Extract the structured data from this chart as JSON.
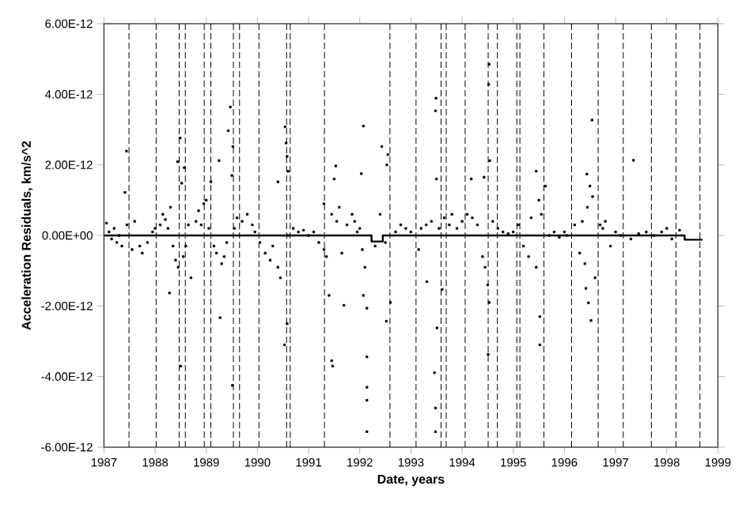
{
  "chart_data": {
    "type": "scatter",
    "xlabel": "Date, years",
    "ylabel": "Acceleration Residuals, km/s^2",
    "xlim": [
      1987,
      1999
    ],
    "xticks": [
      1987,
      1988,
      1989,
      1990,
      1991,
      1992,
      1993,
      1994,
      1995,
      1996,
      1997,
      1998,
      1999
    ],
    "ylim": [
      -6e-12,
      6e-12
    ],
    "yticks": [
      {
        "value": -6e-12,
        "label": "-6.00E-12"
      },
      {
        "value": -4e-12,
        "label": "-4.00E-12"
      },
      {
        "value": -2e-12,
        "label": "-2.00E-12"
      },
      {
        "value": 0,
        "label": "0.00E+00"
      },
      {
        "value": 2e-12,
        "label": "2.00E-12"
      },
      {
        "value": 4e-12,
        "label": "4.00E-12"
      },
      {
        "value": 6e-12,
        "label": "6.00E-12"
      }
    ],
    "grid": false,
    "series": [
      {
        "color": "#000000",
        "marker": "square",
        "x": [
          1987.05,
          1987.1,
          1987.15,
          1987.2,
          1987.25,
          1987.3,
          1987.35,
          1987.45,
          1987.55,
          1987.6,
          1987.7,
          1987.75,
          1987.85,
          1987.95,
          1988.0,
          1988.1,
          1988.15,
          1988.2,
          1988.25,
          1988.3,
          1988.35,
          1988.4,
          1988.45,
          1988.55,
          1988.6,
          1988.65,
          1988.7,
          1988.8,
          1988.85,
          1988.9,
          1988.95,
          1989.0,
          1989.05,
          1989.15,
          1989.2,
          1989.3,
          1989.35,
          1989.4,
          1989.55,
          1989.6,
          1989.7,
          1989.8,
          1989.9,
          1989.95,
          1990.05,
          1990.15,
          1990.25,
          1990.3,
          1990.4,
          1990.45,
          1990.6,
          1990.7,
          1990.8,
          1990.9,
          1991.0,
          1991.1,
          1991.2,
          1991.3,
          1991.35,
          1991.45,
          1991.55,
          1991.6,
          1991.65,
          1991.75,
          1991.85,
          1991.9,
          1991.95,
          1992.0,
          1992.05,
          1992.1,
          1992.3,
          1992.4,
          1992.5,
          1992.7,
          1992.8,
          1992.9,
          1993.0,
          1993.15,
          1993.2,
          1993.3,
          1993.4,
          1993.55,
          1993.65,
          1993.75,
          1993.8,
          1993.9,
          1994.0,
          1994.1,
          1994.2,
          1994.3,
          1994.4,
          1994.45,
          1994.6,
          1994.7,
          1994.8,
          1994.9,
          1995.0,
          1995.1,
          1995.2,
          1995.3,
          1995.35,
          1995.45,
          1995.5,
          1995.55,
          1995.7,
          1995.8,
          1995.9,
          1996.0,
          1996.05,
          1996.2,
          1996.3,
          1996.35,
          1996.4,
          1996.45,
          1996.55,
          1996.6,
          1996.7,
          1996.75,
          1996.8,
          1996.9,
          1997.0,
          1997.1,
          1997.3,
          1997.45,
          1997.6,
          1997.75,
          1997.9,
          1998.0,
          1998.1,
          1998.25,
          1987.44,
          1987.41,
          1988.49,
          1988.44,
          1988.57,
          1988.52,
          1989.47,
          1989.43,
          1989.52,
          1989.25,
          1989.5,
          1989.09,
          1990.54,
          1990.56,
          1990.58,
          1990.6,
          1990.4,
          1991.53,
          1991.5,
          1992.07,
          1992.03,
          1991.3,
          1994.53,
          1994.52,
          1993.49,
          1993.48,
          1996.54,
          1997.35,
          1994.54,
          1992.43,
          1992.55,
          1992.53,
          1995.45,
          1995.63,
          1996.44,
          1996.5,
          1993.5,
          1994.18,
          1994.43,
          1988.28,
          1988.5,
          1989.27,
          1989.51,
          1990.53,
          1990.58,
          1991.45,
          1991.47,
          1991.69,
          1992.14,
          1992.14,
          1992.14,
          1992.14,
          1992.14,
          1992.07,
          1991.4,
          1993.46,
          1993.48,
          1993.48,
          1993.51,
          1993.31,
          1994.51,
          1995.52,
          1995.52,
          1996.47,
          1996.52,
          1992.52,
          1992.6,
          1993.61,
          1994.53,
          1996.42,
          1994.5
        ],
        "values": [
          3.5e-13,
          1e-13,
          -1e-13,
          2e-13,
          -2e-13,
          0.0,
          -3e-13,
          3e-13,
          -4e-13,
          4e-13,
          -3e-13,
          -5e-13,
          -2e-13,
          1e-13,
          2e-13,
          3e-13,
          6e-13,
          4.5e-13,
          2e-13,
          8e-13,
          -3e-13,
          -7e-13,
          -9e-13,
          -6e-13,
          -3e-13,
          3e-13,
          -1.2e-12,
          4e-13,
          7e-13,
          3e-13,
          9e-13,
          1e-12,
          2e-13,
          -3e-13,
          -5e-13,
          -8e-13,
          -6e-13,
          -2e-13,
          2e-13,
          5e-13,
          4e-13,
          6e-13,
          3e-13,
          1e-13,
          -2e-13,
          -5e-13,
          -7e-13,
          -3e-13,
          -9e-13,
          -1.2e-12,
          0.0,
          2e-13,
          1e-13,
          1.5e-13,
          0.0,
          1e-13,
          -2e-13,
          -4e-13,
          -6e-13,
          6e-13,
          4e-13,
          8e-13,
          -5e-13,
          3e-13,
          6e-13,
          4e-13,
          1e-13,
          2e-13,
          -4e-13,
          -9e-13,
          -3e-13,
          6e-13,
          -2e-13,
          1e-13,
          3e-13,
          2e-13,
          1e-13,
          -4e-13,
          2e-13,
          3e-13,
          4e-13,
          2e-13,
          5e-13,
          3e-13,
          6e-13,
          2e-13,
          4e-13,
          6e-13,
          5e-13,
          3e-13,
          -6e-13,
          -9e-13,
          4e-13,
          2e-13,
          1e-13,
          5e-14,
          1e-13,
          3e-13,
          -3e-13,
          -6e-13,
          5e-13,
          -9e-13,
          1e-12,
          6e-13,
          0.0,
          1e-13,
          -5e-14,
          1e-13,
          0.0,
          3e-13,
          -5e-13,
          4e-13,
          -8e-13,
          8e-13,
          1.1e-12,
          -1.2e-12,
          3e-13,
          2e-13,
          4e-13,
          -3e-13,
          1e-13,
          0.0,
          -1e-13,
          5e-14,
          1e-13,
          0.0,
          1e-13,
          2e-13,
          -1e-13,
          1.5e-13,
          2.39e-12,
          1.22e-12,
          2.76e-12,
          2.09e-12,
          1.92e-12,
          1.48e-12,
          3.64e-12,
          2.97e-12,
          2.52e-12,
          2.12e-12,
          1.7e-12,
          1.52e-12,
          3.08e-12,
          2.62e-12,
          2.24e-12,
          1.82e-12,
          1.52e-12,
          1.97e-12,
          1.6e-12,
          3.1e-12,
          1.75e-12,
          9e-13,
          4.85e-12,
          4.28e-12,
          3.89e-12,
          3.53e-12,
          3.27e-12,
          2.13e-12,
          2.12e-12,
          2.52e-12,
          2.29e-12,
          2e-12,
          1.82e-12,
          1.4e-12,
          1.74e-12,
          1.4e-12,
          1.6e-12,
          1.6e-12,
          1.65e-12,
          -1.63e-12,
          -3.7e-12,
          -2.33e-12,
          -4.25e-12,
          -3.1e-12,
          -2.5e-12,
          -3.55e-12,
          -3.7e-12,
          -1.98e-12,
          -2.06e-12,
          -3.44e-12,
          -4.3e-12,
          -4.67e-12,
          -5.56e-12,
          -1.7e-12,
          -1.7e-12,
          -3.89e-12,
          -4.89e-12,
          -5.56e-12,
          -2.62e-12,
          -1.31e-12,
          -3.37e-12,
          -3.1e-12,
          -2.3e-12,
          -1.91e-12,
          -2.41e-12,
          -2.43e-12,
          -1.9e-12,
          -1.53e-12,
          -1.9e-12,
          -1.5e-12,
          -1.4e-12
        ]
      },
      {
        "type": "step",
        "color": "#000000",
        "x": [
          1987.0,
          1992.23,
          1992.45,
          1998.35,
          1998.7
        ],
        "values": [
          0.0,
          -1.7e-13,
          0.0,
          -1.2e-13,
          -1.2e-13
        ]
      }
    ],
    "ref_lines": [
      {
        "axis": "x",
        "value": 1987.49,
        "color": "#000000",
        "line_style": "dashed"
      },
      {
        "axis": "x",
        "value": 1988.02,
        "color": "#000000",
        "line_style": "dashed"
      },
      {
        "axis": "x",
        "value": 1988.47,
        "color": "#000000",
        "line_style": "dashed"
      },
      {
        "axis": "x",
        "value": 1988.59,
        "color": "#000000",
        "line_style": "dashed"
      },
      {
        "axis": "x",
        "value": 1988.96,
        "color": "#000000",
        "line_style": "dashed"
      },
      {
        "axis": "x",
        "value": 1989.09,
        "color": "#000000",
        "line_style": "dashed"
      },
      {
        "axis": "x",
        "value": 1989.53,
        "color": "#000000",
        "line_style": "dashed"
      },
      {
        "axis": "x",
        "value": 1989.65,
        "color": "#000000",
        "line_style": "dashed"
      },
      {
        "axis": "x",
        "value": 1990.03,
        "color": "#000000",
        "line_style": "dashed"
      },
      {
        "axis": "x",
        "value": 1990.57,
        "color": "#000000",
        "line_style": "dashed"
      },
      {
        "axis": "x",
        "value": 1990.64,
        "color": "#000000",
        "line_style": "dashed"
      },
      {
        "axis": "x",
        "value": 1991.31,
        "color": "#000000",
        "line_style": "dashed"
      },
      {
        "axis": "x",
        "value": 1992.59,
        "color": "#000000",
        "line_style": "dashed"
      },
      {
        "axis": "x",
        "value": 1993.1,
        "color": "#000000",
        "line_style": "dashed"
      },
      {
        "axis": "x",
        "value": 1993.59,
        "color": "#000000",
        "line_style": "dashed"
      },
      {
        "axis": "x",
        "value": 1993.69,
        "color": "#000000",
        "line_style": "dashed"
      },
      {
        "axis": "x",
        "value": 1994.06,
        "color": "#000000",
        "line_style": "dashed"
      },
      {
        "axis": "x",
        "value": 1994.51,
        "color": "#000000",
        "line_style": "dashed"
      },
      {
        "axis": "x",
        "value": 1994.69,
        "color": "#000000",
        "line_style": "dashed"
      },
      {
        "axis": "x",
        "value": 1995.07,
        "color": "#000000",
        "line_style": "dashed"
      },
      {
        "axis": "x",
        "value": 1995.13,
        "color": "#000000",
        "line_style": "dashed"
      },
      {
        "axis": "x",
        "value": 1995.6,
        "color": "#000000",
        "line_style": "dashed"
      },
      {
        "axis": "x",
        "value": 1996.14,
        "color": "#000000",
        "line_style": "dashed"
      },
      {
        "axis": "x",
        "value": 1996.66,
        "color": "#000000",
        "line_style": "dashed"
      },
      {
        "axis": "x",
        "value": 1997.15,
        "color": "#000000",
        "line_style": "dashed"
      },
      {
        "axis": "x",
        "value": 1997.7,
        "color": "#000000",
        "line_style": "dashed"
      },
      {
        "axis": "x",
        "value": 1998.18,
        "color": "#000000",
        "line_style": "dashed"
      },
      {
        "axis": "x",
        "value": 1998.65,
        "color": "#000000",
        "line_style": "dashed"
      }
    ]
  }
}
